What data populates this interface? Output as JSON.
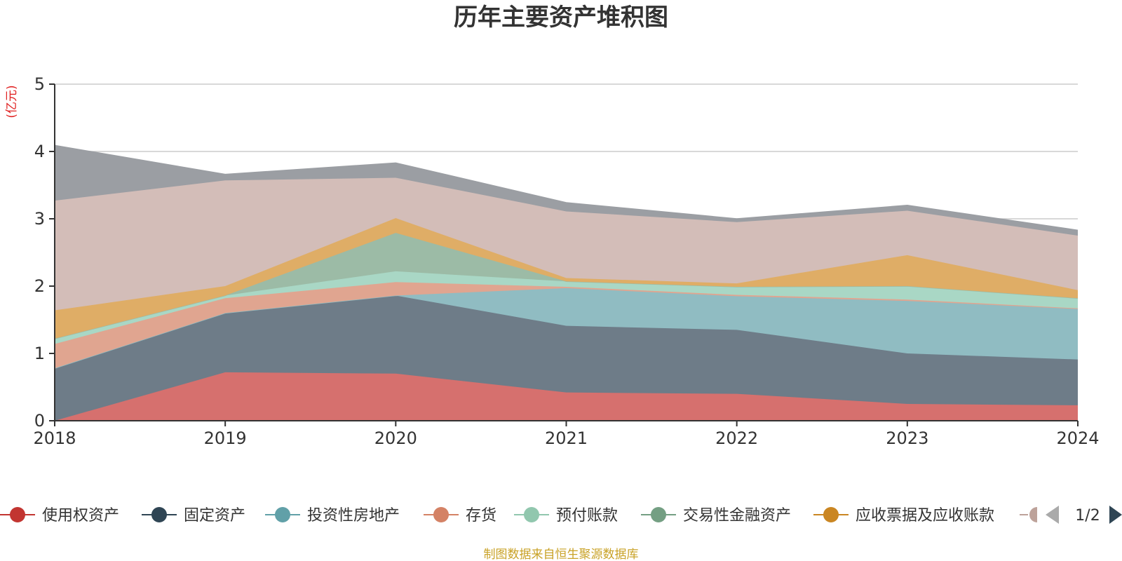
{
  "chart_data": {
    "type": "area",
    "title": "历年主要资产堆积图",
    "ylabel": "(亿元)",
    "xlabel": "",
    "categories": [
      "2018",
      "2019",
      "2020",
      "2021",
      "2022",
      "2023",
      "2024"
    ],
    "ylim": [
      0,
      5
    ],
    "yticks": [
      0,
      1,
      2,
      3,
      4,
      5
    ],
    "grid": true,
    "stacked": true,
    "legend_position": "bottom",
    "legend_page": "1/2",
    "series": [
      {
        "name": "使用权资产",
        "color": "#d6706e",
        "legend_color": "#c23531",
        "values": [
          0,
          0.72,
          0.7,
          0.42,
          0.4,
          0.25,
          0.23
        ]
      },
      {
        "name": "固定资产",
        "color": "#6e7c88",
        "legend_color": "#2f4554",
        "values": [
          0.78,
          0.88,
          1.16,
          0.99,
          0.95,
          0.75,
          0.68
        ]
      },
      {
        "name": "投资性房地产",
        "color": "#90bcc2",
        "legend_color": "#61a0a8",
        "values": [
          0,
          0,
          0,
          0.56,
          0.5,
          0.78,
          0.75
        ]
      },
      {
        "name": "存货",
        "color": "#e0a590",
        "legend_color": "#d48265",
        "values": [
          0.36,
          0.22,
          0.2,
          0.02,
          0.02,
          0.02,
          0.01
        ]
      },
      {
        "name": "预付账款",
        "color": "#a9d7c5",
        "legend_color": "#91c7ae",
        "values": [
          0.08,
          0.04,
          0.16,
          0.08,
          0.12,
          0.2,
          0.15
        ]
      },
      {
        "name": "交易性金融资产",
        "color": "#9cbba6",
        "legend_color": "#749f83",
        "values": [
          0,
          0,
          0.57,
          0,
          0,
          0,
          0
        ]
      },
      {
        "name": "应收票据及应收账款",
        "color": "#dfad66",
        "legend_color": "#ca8622",
        "values": [
          0.42,
          0.14,
          0.22,
          0.05,
          0.05,
          0.46,
          0.12
        ]
      },
      {
        "name": "",
        "color": "#d3bdb8",
        "legend_color": "#bda29a",
        "values": [
          1.63,
          1.57,
          0.6,
          0.99,
          0.91,
          0.66,
          0.81
        ]
      },
      {
        "name": "",
        "color": "#9b9ea3",
        "legend_color": "#6e7074",
        "values": [
          0.82,
          0.09,
          0.22,
          0.13,
          0.05,
          0.08,
          0.08
        ]
      }
    ]
  },
  "footer": {
    "source": "制图数据来自恒生聚源数据库"
  }
}
